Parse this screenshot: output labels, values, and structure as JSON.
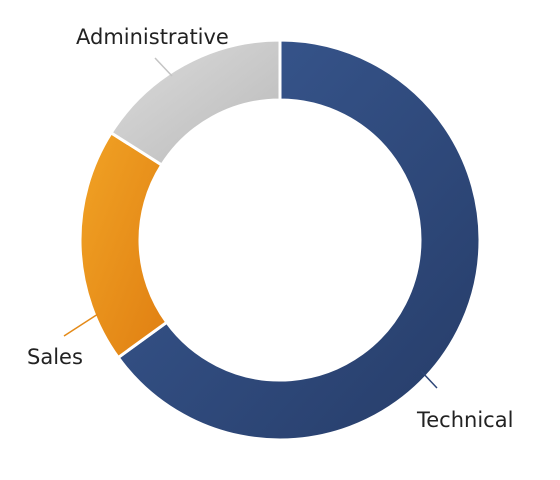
{
  "chart_data": {
    "type": "pie",
    "variant": "donut",
    "title": "",
    "categories": [
      "Technical",
      "Sales",
      "Administrative"
    ],
    "values": [
      65,
      19,
      16
    ],
    "unit": "percent (estimated share)",
    "legend": "none (labels with leader lines)",
    "colors": {
      "Technical": [
        "#3a5a93",
        "#263c68"
      ],
      "Sales": [
        "#f1a325",
        "#e07f12"
      ],
      "Administrative": [
        "#dcdcdc",
        "#b9b9b9"
      ]
    },
    "separator_color": "#ffffff",
    "leader_colors": {
      "Technical": "#2d4577",
      "Sales": "#e48a18",
      "Administrative": "#c4c4c4"
    }
  }
}
